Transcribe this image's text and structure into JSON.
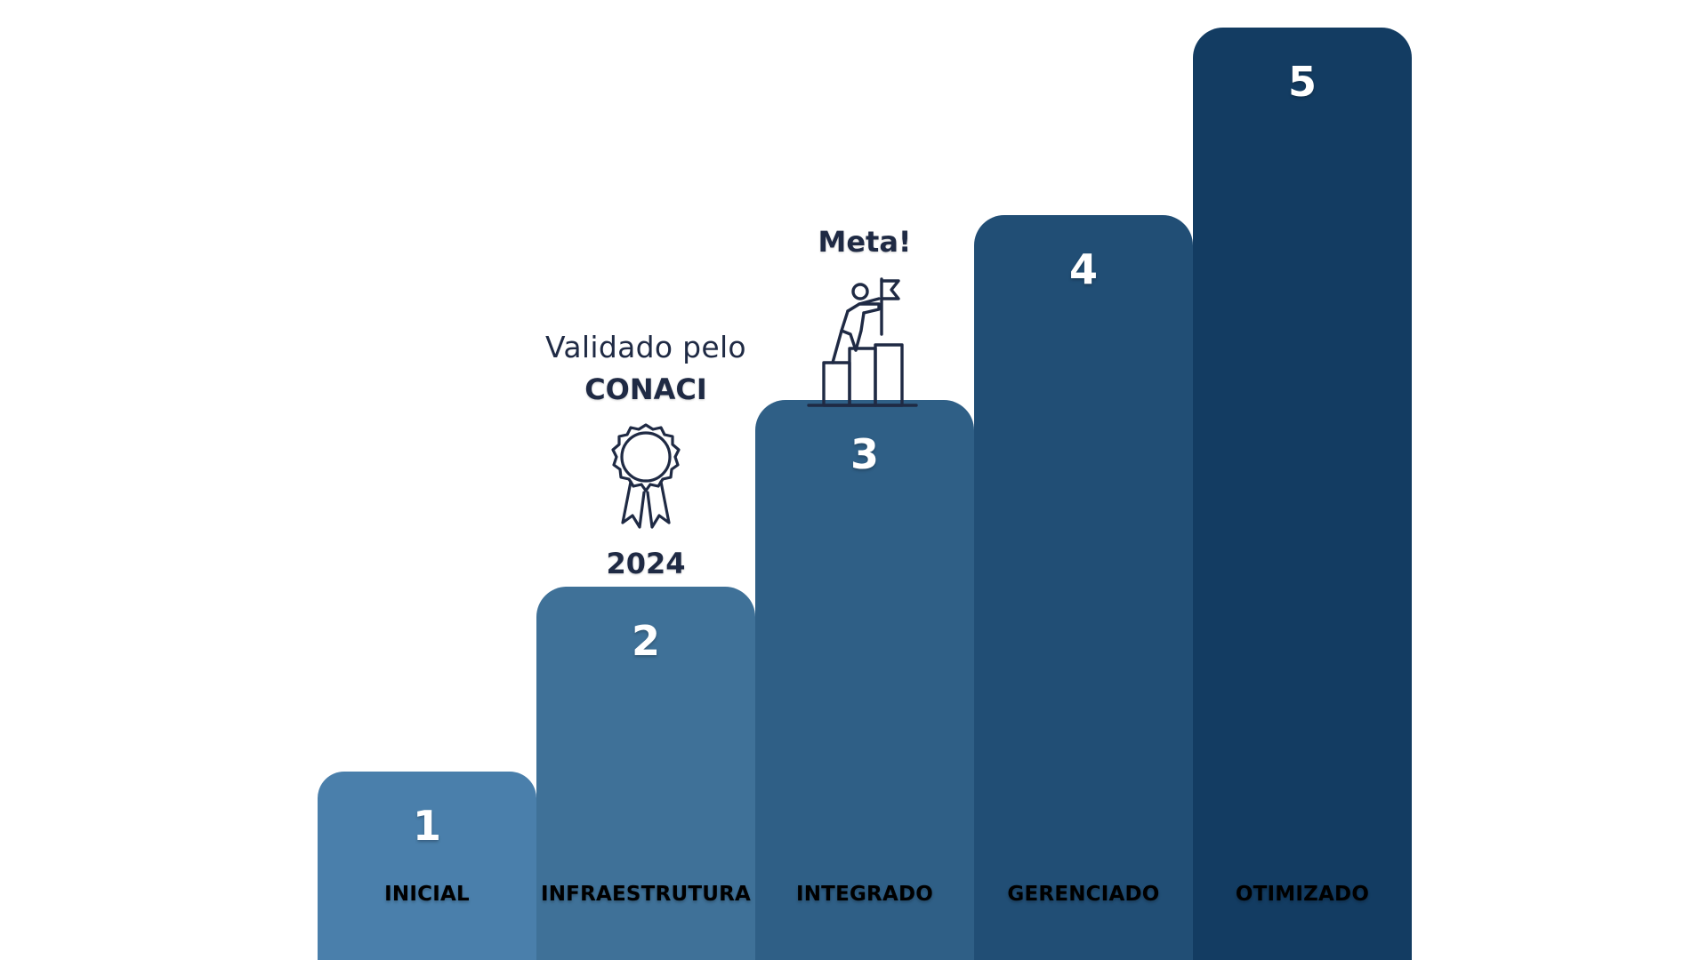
{
  "steps": [
    {
      "number": "1",
      "label": "INICIAL",
      "level": 1,
      "color": "#4a7fab"
    },
    {
      "number": "2",
      "label": "INFRAESTRUTURA",
      "level": 2,
      "color": "#3f7198"
    },
    {
      "number": "3",
      "label": "INTEGRADO",
      "level": 3,
      "color": "#2f5f86"
    },
    {
      "number": "4",
      "label": "GERENCIADO",
      "level": 4,
      "color": "#214e75"
    },
    {
      "number": "5",
      "label": "OTIMIZADO",
      "level": 5,
      "color": "#133c62"
    }
  ],
  "validation": {
    "line1": "Validado pelo",
    "line2": "CONACI",
    "year": "2024",
    "icon": "award-ribbon-icon"
  },
  "goal": {
    "label": "Meta!",
    "icon": "person-climbing-flag-icon"
  },
  "colors": {
    "annotation_text": "#1f2a44"
  }
}
